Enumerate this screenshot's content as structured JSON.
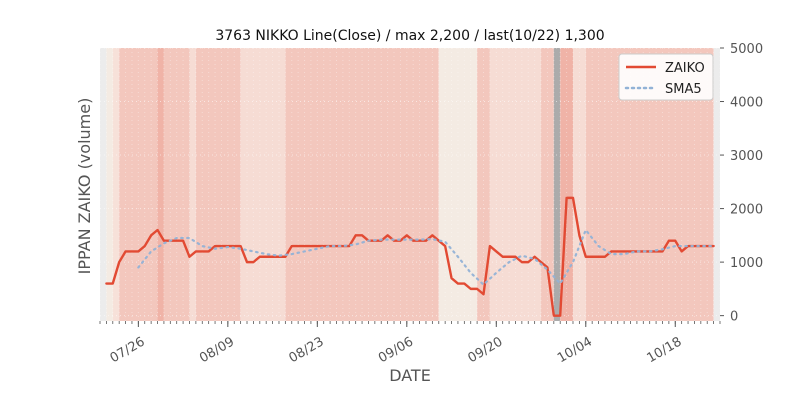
{
  "chart_data": {
    "type": "line",
    "title": "3763 NIKKO Line(Close) / max 2,200 / last(10/22) 1,300",
    "xlabel": "DATE",
    "ylabel": "IPPAN ZAIKO (volume)",
    "ylim": [
      -100,
      5000
    ],
    "yticks": [
      {
        "value": 0,
        "label": "0"
      },
      {
        "value": 1000,
        "label": "1000"
      },
      {
        "value": 2000,
        "label": "2000"
      },
      {
        "value": 3000,
        "label": "3000"
      },
      {
        "value": 4000,
        "label": "4000"
      },
      {
        "value": 5000,
        "label": "5000"
      }
    ],
    "xlim": [
      "2021-07-20",
      "2021-10-25"
    ],
    "xticks": [
      {
        "date": "2021-07-26",
        "label": "07/26"
      },
      {
        "date": "2021-08-09",
        "label": "08/09"
      },
      {
        "date": "2021-08-23",
        "label": "08/23"
      },
      {
        "date": "2021-09-06",
        "label": "09/06"
      },
      {
        "date": "2021-09-20",
        "label": "09/20"
      },
      {
        "date": "2021-10-04",
        "label": "10/04"
      },
      {
        "date": "2021-10-18",
        "label": "10/18"
      }
    ],
    "grid": true,
    "legend_position": "top-right",
    "series": [
      {
        "name": "ZAIKO",
        "color": "#e24a33",
        "style": "solid",
        "points": [
          [
            "2021-07-21",
            600
          ],
          [
            "2021-07-22",
            600
          ],
          [
            "2021-07-23",
            1000
          ],
          [
            "2021-07-24",
            1200
          ],
          [
            "2021-07-25",
            1200
          ],
          [
            "2021-07-26",
            1200
          ],
          [
            "2021-07-27",
            1300
          ],
          [
            "2021-07-28",
            1500
          ],
          [
            "2021-07-29",
            1600
          ],
          [
            "2021-07-30",
            1400
          ],
          [
            "2021-07-31",
            1400
          ],
          [
            "2021-08-01",
            1400
          ],
          [
            "2021-08-02",
            1400
          ],
          [
            "2021-08-03",
            1100
          ],
          [
            "2021-08-04",
            1200
          ],
          [
            "2021-08-05",
            1200
          ],
          [
            "2021-08-06",
            1200
          ],
          [
            "2021-08-07",
            1300
          ],
          [
            "2021-08-08",
            1300
          ],
          [
            "2021-08-09",
            1300
          ],
          [
            "2021-08-10",
            1300
          ],
          [
            "2021-08-11",
            1300
          ],
          [
            "2021-08-12",
            1000
          ],
          [
            "2021-08-13",
            1000
          ],
          [
            "2021-08-14",
            1100
          ],
          [
            "2021-08-15",
            1100
          ],
          [
            "2021-08-16",
            1100
          ],
          [
            "2021-08-17",
            1100
          ],
          [
            "2021-08-18",
            1100
          ],
          [
            "2021-08-19",
            1300
          ],
          [
            "2021-08-20",
            1300
          ],
          [
            "2021-08-21",
            1300
          ],
          [
            "2021-08-22",
            1300
          ],
          [
            "2021-08-23",
            1300
          ],
          [
            "2021-08-24",
            1300
          ],
          [
            "2021-08-25",
            1300
          ],
          [
            "2021-08-26",
            1300
          ],
          [
            "2021-08-27",
            1300
          ],
          [
            "2021-08-28",
            1300
          ],
          [
            "2021-08-29",
            1500
          ],
          [
            "2021-08-30",
            1500
          ],
          [
            "2021-08-31",
            1400
          ],
          [
            "2021-09-01",
            1400
          ],
          [
            "2021-09-02",
            1400
          ],
          [
            "2021-09-03",
            1500
          ],
          [
            "2021-09-04",
            1400
          ],
          [
            "2021-09-05",
            1400
          ],
          [
            "2021-09-06",
            1500
          ],
          [
            "2021-09-07",
            1400
          ],
          [
            "2021-09-08",
            1400
          ],
          [
            "2021-09-09",
            1400
          ],
          [
            "2021-09-10",
            1500
          ],
          [
            "2021-09-11",
            1400
          ],
          [
            "2021-09-12",
            1300
          ],
          [
            "2021-09-13",
            700
          ],
          [
            "2021-09-14",
            600
          ],
          [
            "2021-09-15",
            600
          ],
          [
            "2021-09-16",
            500
          ],
          [
            "2021-09-17",
            500
          ],
          [
            "2021-09-18",
            400
          ],
          [
            "2021-09-19",
            1300
          ],
          [
            "2021-09-20",
            1200
          ],
          [
            "2021-09-21",
            1100
          ],
          [
            "2021-09-22",
            1100
          ],
          [
            "2021-09-23",
            1100
          ],
          [
            "2021-09-24",
            1000
          ],
          [
            "2021-09-25",
            1000
          ],
          [
            "2021-09-26",
            1100
          ],
          [
            "2021-09-27",
            1000
          ],
          [
            "2021-09-28",
            900
          ],
          [
            "2021-09-29",
            0
          ],
          [
            "2021-09-30",
            0
          ],
          [
            "2021-10-01",
            2200
          ],
          [
            "2021-10-02",
            2200
          ],
          [
            "2021-10-03",
            1500
          ],
          [
            "2021-10-04",
            1100
          ],
          [
            "2021-10-05",
            1100
          ],
          [
            "2021-10-06",
            1100
          ],
          [
            "2021-10-07",
            1100
          ],
          [
            "2021-10-08",
            1200
          ],
          [
            "2021-10-09",
            1200
          ],
          [
            "2021-10-10",
            1200
          ],
          [
            "2021-10-11",
            1200
          ],
          [
            "2021-10-12",
            1200
          ],
          [
            "2021-10-13",
            1200
          ],
          [
            "2021-10-14",
            1200
          ],
          [
            "2021-10-15",
            1200
          ],
          [
            "2021-10-16",
            1200
          ],
          [
            "2021-10-17",
            1400
          ],
          [
            "2021-10-18",
            1400
          ],
          [
            "2021-10-19",
            1200
          ],
          [
            "2021-10-20",
            1300
          ],
          [
            "2021-10-21",
            1300
          ],
          [
            "2021-10-22",
            1300
          ],
          [
            "2021-10-23",
            1300
          ],
          [
            "2021-10-24",
            1300
          ]
        ]
      },
      {
        "name": "SMA5",
        "color": "#92b2d6",
        "style": "dotted",
        "points": [
          [
            "2021-07-26",
            900
          ],
          [
            "2021-07-28",
            1200
          ],
          [
            "2021-07-30",
            1350
          ],
          [
            "2021-08-01",
            1450
          ],
          [
            "2021-08-03",
            1450
          ],
          [
            "2021-08-05",
            1300
          ],
          [
            "2021-08-07",
            1250
          ],
          [
            "2021-08-09",
            1280
          ],
          [
            "2021-08-11",
            1250
          ],
          [
            "2021-08-13",
            1200
          ],
          [
            "2021-08-15",
            1150
          ],
          [
            "2021-08-17",
            1120
          ],
          [
            "2021-08-19",
            1150
          ],
          [
            "2021-08-21",
            1200
          ],
          [
            "2021-08-23",
            1250
          ],
          [
            "2021-08-25",
            1300
          ],
          [
            "2021-08-27",
            1300
          ],
          [
            "2021-08-29",
            1330
          ],
          [
            "2021-08-31",
            1400
          ],
          [
            "2021-09-02",
            1420
          ],
          [
            "2021-09-04",
            1420
          ],
          [
            "2021-09-06",
            1420
          ],
          [
            "2021-09-08",
            1420
          ],
          [
            "2021-09-10",
            1430
          ],
          [
            "2021-09-12",
            1380
          ],
          [
            "2021-09-14",
            1100
          ],
          [
            "2021-09-16",
            800
          ],
          [
            "2021-09-18",
            580
          ],
          [
            "2021-09-20",
            800
          ],
          [
            "2021-09-22",
            1000
          ],
          [
            "2021-09-24",
            1120
          ],
          [
            "2021-09-26",
            1060
          ],
          [
            "2021-09-28",
            860
          ],
          [
            "2021-09-30",
            600
          ],
          [
            "2021-10-02",
            1000
          ],
          [
            "2021-10-04",
            1600
          ],
          [
            "2021-10-06",
            1300
          ],
          [
            "2021-10-08",
            1150
          ],
          [
            "2021-10-10",
            1150
          ],
          [
            "2021-10-12",
            1200
          ],
          [
            "2021-10-14",
            1200
          ],
          [
            "2021-10-16",
            1240
          ],
          [
            "2021-10-18",
            1300
          ],
          [
            "2021-10-20",
            1300
          ],
          [
            "2021-10-22",
            1300
          ],
          [
            "2021-10-24",
            1300
          ]
        ]
      }
    ],
    "background_bands": [
      {
        "from": "2021-07-20",
        "to": "2021-07-21",
        "color": "#ececec"
      },
      {
        "from": "2021-07-21",
        "to": "2021-07-22",
        "color": "#f4ebe3"
      },
      {
        "from": "2021-07-22",
        "to": "2021-07-23",
        "color": "#f7e1d9"
      },
      {
        "from": "2021-07-23",
        "to": "2021-07-29",
        "color": "#f3c7bd"
      },
      {
        "from": "2021-07-29",
        "to": "2021-07-30",
        "color": "#f0b3a7"
      },
      {
        "from": "2021-07-30",
        "to": "2021-08-03",
        "color": "#f3c7bd"
      },
      {
        "from": "2021-08-03",
        "to": "2021-08-04",
        "color": "#f6dcd4"
      },
      {
        "from": "2021-08-04",
        "to": "2021-08-11",
        "color": "#f3c7bd"
      },
      {
        "from": "2021-08-11",
        "to": "2021-08-18",
        "color": "#f6dcd4"
      },
      {
        "from": "2021-08-18",
        "to": "2021-09-11",
        "color": "#f3c7bd"
      },
      {
        "from": "2021-09-11",
        "to": "2021-09-17",
        "color": "#f4ebe3"
      },
      {
        "from": "2021-09-17",
        "to": "2021-09-19",
        "color": "#f3c7bd"
      },
      {
        "from": "2021-09-19",
        "to": "2021-09-27",
        "color": "#f6dcd4"
      },
      {
        "from": "2021-09-27",
        "to": "2021-09-29",
        "color": "#f3c7bd"
      },
      {
        "from": "2021-09-29",
        "to": "2021-09-30",
        "color": "#ababab"
      },
      {
        "from": "2021-09-30",
        "to": "2021-10-02",
        "color": "#f0b3a7"
      },
      {
        "from": "2021-10-02",
        "to": "2021-10-04",
        "color": "#f6dcd4"
      },
      {
        "from": "2021-10-04",
        "to": "2021-10-24",
        "color": "#f3c7bd"
      },
      {
        "from": "2021-10-24",
        "to": "2021-10-25",
        "color": "#ececec"
      }
    ]
  }
}
